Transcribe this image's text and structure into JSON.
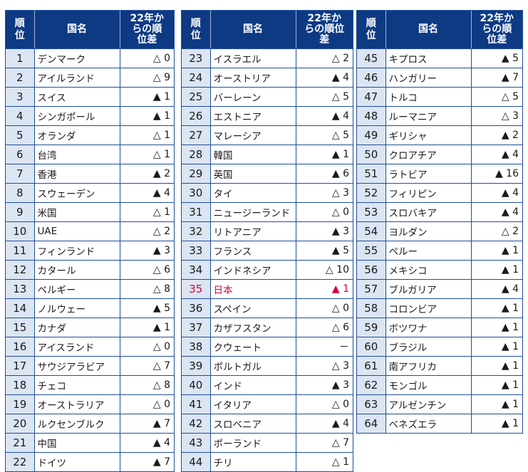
{
  "header": {
    "rank": "順位",
    "country": "国名",
    "diff": "22年からの順位差"
  },
  "panels": [
    [
      {
        "rank": "1",
        "country": "デンマーク",
        "diff": "△ 0"
      },
      {
        "rank": "2",
        "country": "アイルランド",
        "diff": "△ 9"
      },
      {
        "rank": "3",
        "country": "スイス",
        "diff": "▲ 1"
      },
      {
        "rank": "4",
        "country": "シンガポール",
        "diff": "▲ 1"
      },
      {
        "rank": "5",
        "country": "オランダ",
        "diff": "△ 1"
      },
      {
        "rank": "6",
        "country": "台湾",
        "diff": "△ 1"
      },
      {
        "rank": "7",
        "country": "香港",
        "diff": "▲ 2"
      },
      {
        "rank": "8",
        "country": "スウェーデン",
        "diff": "▲ 4"
      },
      {
        "rank": "9",
        "country": "米国",
        "diff": "△ 1"
      },
      {
        "rank": "10",
        "country": "UAE",
        "diff": "△ 2"
      },
      {
        "rank": "11",
        "country": "フィンランド",
        "diff": "▲ 3"
      },
      {
        "rank": "12",
        "country": "カタール",
        "diff": "△ 6"
      },
      {
        "rank": "13",
        "country": "ベルギー",
        "diff": "△ 8"
      },
      {
        "rank": "14",
        "country": "ノルウェー",
        "diff": "▲ 5"
      },
      {
        "rank": "15",
        "country": "カナダ",
        "diff": "▲ 1"
      },
      {
        "rank": "16",
        "country": "アイスランド",
        "diff": "△ 0"
      },
      {
        "rank": "17",
        "country": "サウジアラビア",
        "diff": "△ 7"
      },
      {
        "rank": "18",
        "country": "チェコ",
        "diff": "△ 8"
      },
      {
        "rank": "19",
        "country": "オーストラリア",
        "diff": "△ 0"
      },
      {
        "rank": "20",
        "country": "ルクセンブルク",
        "diff": "▲ 7"
      },
      {
        "rank": "21",
        "country": "中国",
        "diff": "▲ 4"
      },
      {
        "rank": "22",
        "country": "ドイツ",
        "diff": "▲ 7"
      }
    ],
    [
      {
        "rank": "23",
        "country": "イスラエル",
        "diff": "△ 2"
      },
      {
        "rank": "24",
        "country": "オーストリア",
        "diff": "▲ 4"
      },
      {
        "rank": "25",
        "country": "バーレーン",
        "diff": "△ 5"
      },
      {
        "rank": "26",
        "country": "エストニア",
        "diff": "▲ 4"
      },
      {
        "rank": "27",
        "country": "マレーシア",
        "diff": "△ 5"
      },
      {
        "rank": "28",
        "country": "韓国",
        "diff": "▲ 1"
      },
      {
        "rank": "29",
        "country": "英国",
        "diff": "▲ 6"
      },
      {
        "rank": "30",
        "country": "タイ",
        "diff": "△ 3"
      },
      {
        "rank": "31",
        "country": "ニュージーランド",
        "diff": "△ 0"
      },
      {
        "rank": "32",
        "country": "リトアニア",
        "diff": "▲ 3"
      },
      {
        "rank": "33",
        "country": "フランス",
        "diff": "▲ 5"
      },
      {
        "rank": "34",
        "country": "インドネシア",
        "diff": "△ 10"
      },
      {
        "rank": "35",
        "country": "日本",
        "diff": "▲ 1",
        "highlight": true
      },
      {
        "rank": "36",
        "country": "スペイン",
        "diff": "△ 0"
      },
      {
        "rank": "37",
        "country": "カザフスタン",
        "diff": "△ 6"
      },
      {
        "rank": "38",
        "country": "クウェート",
        "diff": "－"
      },
      {
        "rank": "39",
        "country": "ポルトガル",
        "diff": "△ 3"
      },
      {
        "rank": "40",
        "country": "インド",
        "diff": "▲ 3"
      },
      {
        "rank": "41",
        "country": "イタリア",
        "diff": "△ 0"
      },
      {
        "rank": "42",
        "country": "スロベニア",
        "diff": "▲ 4"
      },
      {
        "rank": "43",
        "country": "ポーランド",
        "diff": "△ 7"
      },
      {
        "rank": "44",
        "country": "チリ",
        "diff": "△ 1"
      }
    ],
    [
      {
        "rank": "45",
        "country": "キプロス",
        "diff": "▲ 5"
      },
      {
        "rank": "46",
        "country": "ハンガリー",
        "diff": "▲ 7"
      },
      {
        "rank": "47",
        "country": "トルコ",
        "diff": "△ 5"
      },
      {
        "rank": "48",
        "country": "ルーマニア",
        "diff": "△ 3"
      },
      {
        "rank": "49",
        "country": "ギリシャ",
        "diff": "▲ 2"
      },
      {
        "rank": "50",
        "country": "クロアチア",
        "diff": "▲ 4"
      },
      {
        "rank": "51",
        "country": "ラトビア",
        "diff": "▲ 16"
      },
      {
        "rank": "52",
        "country": "フィリピン",
        "diff": "▲ 4"
      },
      {
        "rank": "53",
        "country": "スロバキア",
        "diff": "▲ 4"
      },
      {
        "rank": "54",
        "country": "ヨルダン",
        "diff": "△ 2"
      },
      {
        "rank": "55",
        "country": "ペルー",
        "diff": "▲ 1"
      },
      {
        "rank": "56",
        "country": "メキシコ",
        "diff": "▲ 1"
      },
      {
        "rank": "57",
        "country": "ブルガリア",
        "diff": "▲ 4"
      },
      {
        "rank": "58",
        "country": "コロンビア",
        "diff": "▲ 1"
      },
      {
        "rank": "59",
        "country": "ボツワナ",
        "diff": "▲ 1"
      },
      {
        "rank": "60",
        "country": "ブラジル",
        "diff": "▲ 1"
      },
      {
        "rank": "61",
        "country": "南アフリカ",
        "diff": "▲ 1"
      },
      {
        "rank": "62",
        "country": "モンゴル",
        "diff": "▲ 1"
      },
      {
        "rank": "63",
        "country": "アルゼンチン",
        "diff": "▲ 1"
      },
      {
        "rank": "64",
        "country": "ベネズエラ",
        "diff": "▲ 1"
      }
    ]
  ]
}
